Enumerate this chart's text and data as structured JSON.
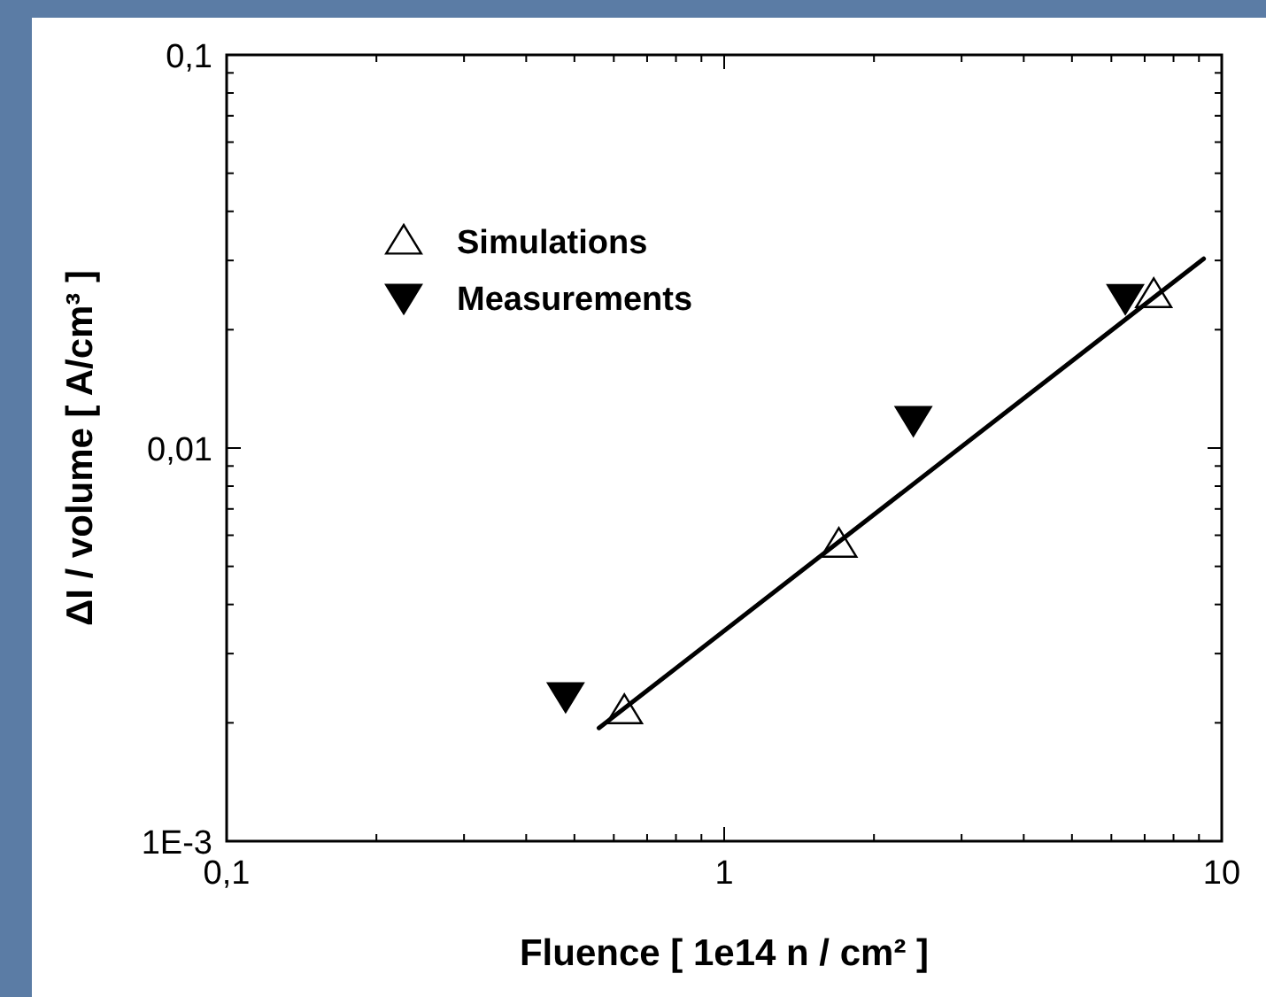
{
  "chart_data": {
    "type": "scatter",
    "xlabel": "Fluence [ 1e14 n / cm² ]",
    "ylabel": "ΔI / volume [ A/cm³ ]",
    "log": "xy",
    "xlim": [
      0.1,
      10
    ],
    "ylim": [
      0.001,
      0.1
    ],
    "xticks": [
      {
        "value": 0.1,
        "label": "0,1"
      },
      {
        "value": 0.2,
        "label": null
      },
      {
        "value": 0.3,
        "label": null
      },
      {
        "value": 0.4,
        "label": null
      },
      {
        "value": 0.5,
        "label": null
      },
      {
        "value": 0.6,
        "label": null
      },
      {
        "value": 0.7,
        "label": null
      },
      {
        "value": 0.8,
        "label": null
      },
      {
        "value": 0.9,
        "label": null
      },
      1,
      {
        "value": 2,
        "label": null
      },
      {
        "value": 3,
        "label": null
      },
      {
        "value": 4,
        "label": null
      },
      {
        "value": 5,
        "label": null
      },
      {
        "value": 6,
        "label": null
      },
      {
        "value": 7,
        "label": null
      },
      {
        "value": 8,
        "label": null
      },
      {
        "value": 9,
        "label": null
      },
      10
    ],
    "yticks": [
      {
        "value": 0.001,
        "label": "1E-3"
      },
      {
        "value": 0.002,
        "label": null
      },
      {
        "value": 0.003,
        "label": null
      },
      {
        "value": 0.004,
        "label": null
      },
      {
        "value": 0.005,
        "label": null
      },
      {
        "value": 0.006,
        "label": null
      },
      {
        "value": 0.007,
        "label": null
      },
      {
        "value": 0.008,
        "label": null
      },
      {
        "value": 0.009,
        "label": null
      },
      {
        "value": 0.01,
        "label": "0,01"
      },
      {
        "value": 0.02,
        "label": null
      },
      {
        "value": 0.03,
        "label": null
      },
      {
        "value": 0.04,
        "label": null
      },
      {
        "value": 0.05,
        "label": null
      },
      {
        "value": 0.06,
        "label": null
      },
      {
        "value": 0.07,
        "label": null
      },
      {
        "value": 0.08,
        "label": null
      },
      {
        "value": 0.09,
        "label": null
      },
      {
        "value": 0.1,
        "label": "0,1"
      }
    ],
    "grid": false,
    "legend": "top left",
    "series": [
      {
        "name": "Simulations",
        "color": "#000000",
        "marker": "triangle",
        "x": [
          0.63,
          1.7,
          7.3
        ],
        "values": [
          0.00215,
          0.0057,
          0.0246
        ]
      },
      {
        "name": "Measurements",
        "color": "#000000",
        "marker": "triangle-down",
        "x": [
          0.48,
          2.4,
          6.4
        ],
        "values": [
          0.00234,
          0.0118,
          0.0241
        ]
      },
      {
        "type": "line",
        "color": "#000000",
        "line_style": "solid",
        "x": [
          0.56,
          9.2
        ],
        "values": [
          0.00194,
          0.0303
        ]
      }
    ]
  }
}
